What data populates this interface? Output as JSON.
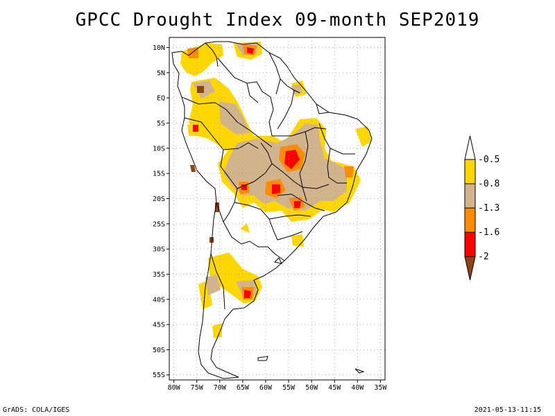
{
  "title": "GPCC Drought Index 09-month SEP2019",
  "footer": {
    "left": "GrADS: COLA/IGES",
    "right": "2021-05-13-11:15"
  },
  "map": {
    "lat_range": [
      -56,
      12
    ],
    "lon_range": [
      -81,
      -34
    ],
    "lat_ticks": [
      {
        "value": 10,
        "label": "10N"
      },
      {
        "value": 5,
        "label": "5N"
      },
      {
        "value": 0,
        "label": "EQ"
      },
      {
        "value": -5,
        "label": "5S"
      },
      {
        "value": -10,
        "label": "10S"
      },
      {
        "value": -15,
        "label": "15S"
      },
      {
        "value": -20,
        "label": "20S"
      },
      {
        "value": -25,
        "label": "25S"
      },
      {
        "value": -30,
        "label": "30S"
      },
      {
        "value": -35,
        "label": "35S"
      },
      {
        "value": -40,
        "label": "40S"
      },
      {
        "value": -45,
        "label": "45S"
      },
      {
        "value": -50,
        "label": "50S"
      },
      {
        "value": -55,
        "label": "55S"
      }
    ],
    "lon_ticks": [
      {
        "value": -80,
        "label": "80W"
      },
      {
        "value": -75,
        "label": "75W"
      },
      {
        "value": -70,
        "label": "70W"
      },
      {
        "value": -65,
        "label": "65W"
      },
      {
        "value": -60,
        "label": "60W"
      },
      {
        "value": -55,
        "label": "55W"
      },
      {
        "value": -50,
        "label": "50W"
      },
      {
        "value": -45,
        "label": "45W"
      },
      {
        "value": -40,
        "label": "40W"
      },
      {
        "value": -35,
        "label": "35W"
      }
    ],
    "grid": "dotted"
  },
  "legend": {
    "placement": "right",
    "classes": [
      {
        "color": "#ffffff",
        "range": "> -0.5"
      },
      {
        "color": "#ffd700",
        "label": "-0.5"
      },
      {
        "color": "#d2b48c",
        "label": "-0.8"
      },
      {
        "color": "#ff8c00",
        "label": "-1.3"
      },
      {
        "color": "#ff0000",
        "label": "-1.6"
      },
      {
        "color": "#8b4513",
        "label": "-2"
      }
    ]
  }
}
